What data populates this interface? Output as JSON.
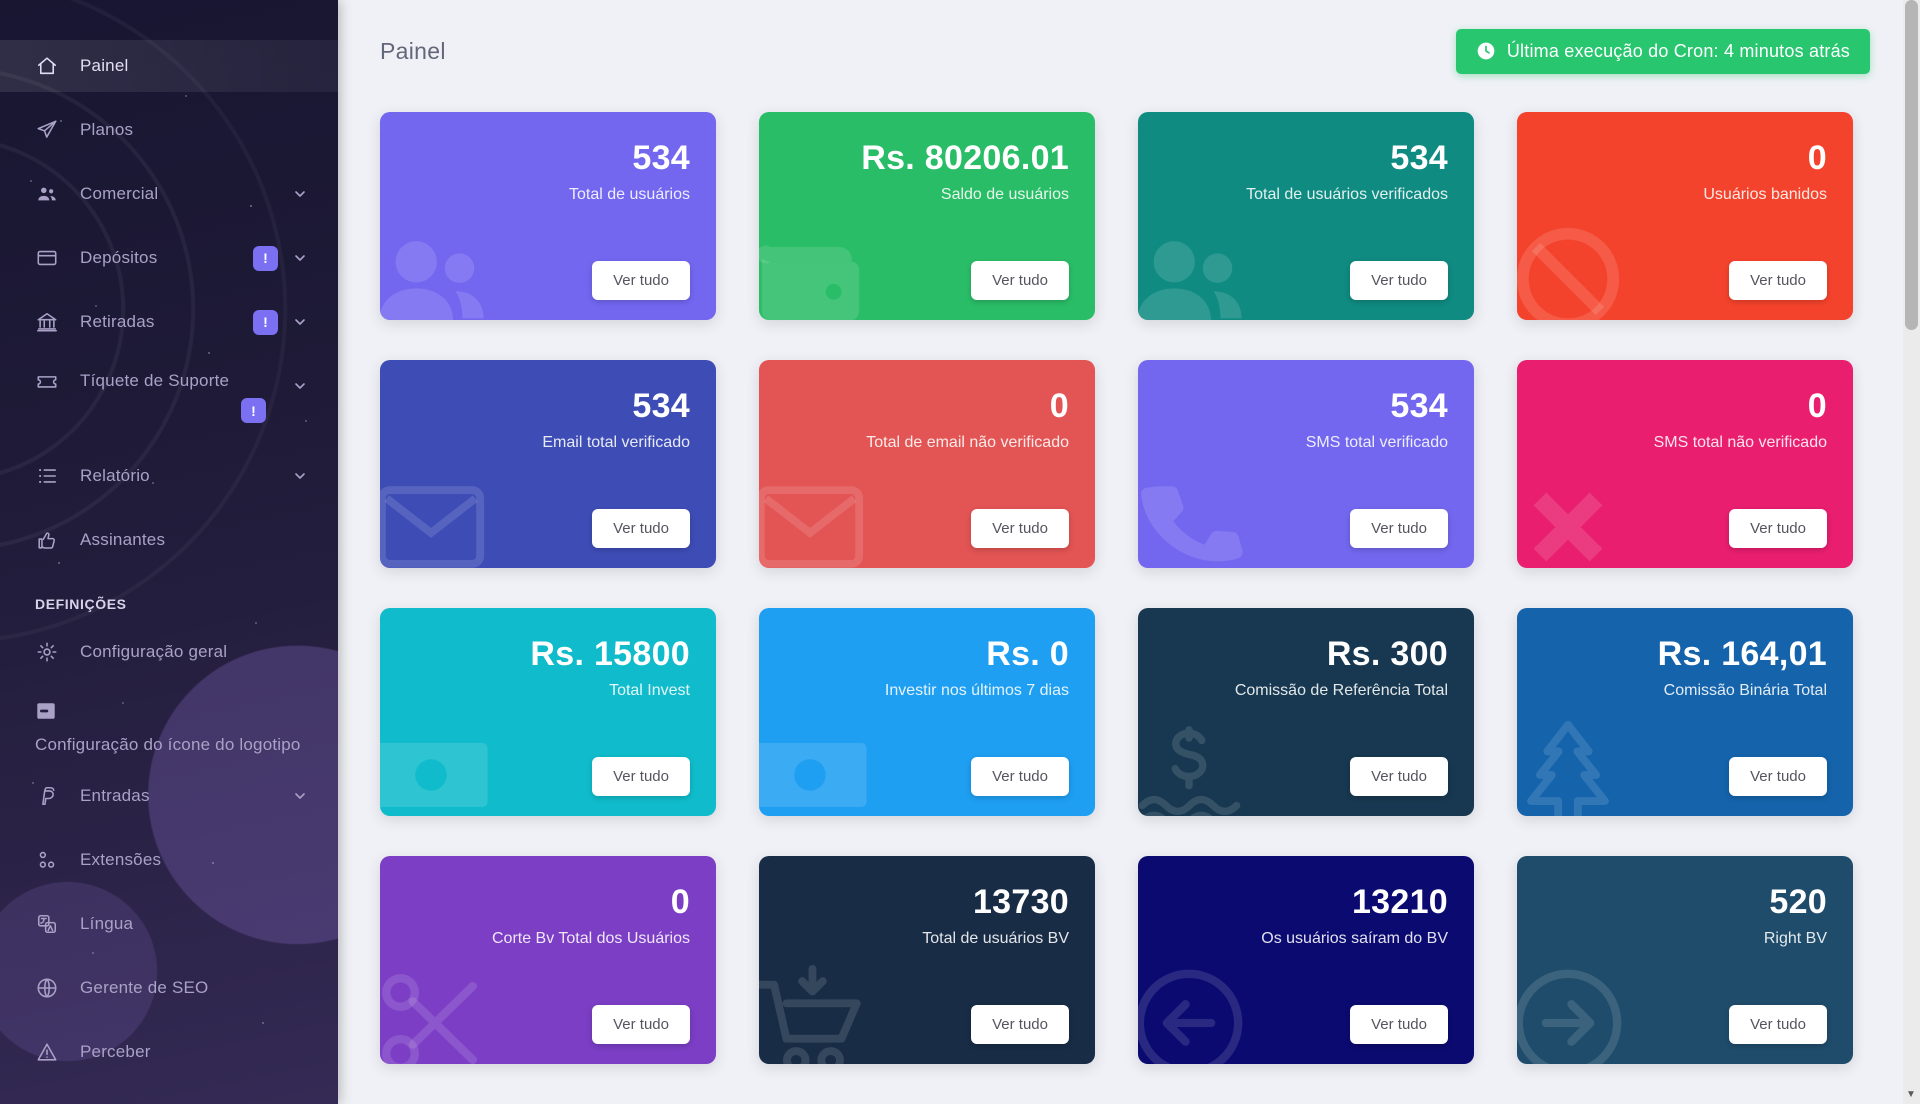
{
  "sidebar": {
    "section_header": "DEFINIÇÕES",
    "chevron_icon": "chevron-down",
    "items": [
      {
        "label": "Painel",
        "icon": "home",
        "active": true
      },
      {
        "label": "Planos",
        "icon": "paper-plane"
      },
      {
        "label": "Comercial",
        "icon": "users"
      },
      {
        "label": "Depósitos",
        "icon": "credit-card",
        "badge": "!"
      },
      {
        "label": "Retiradas",
        "icon": "bank",
        "badge": "!"
      },
      {
        "label": "Tíquete de Suporte",
        "icon": "ticket",
        "badge": "!"
      },
      {
        "label": "Relatório",
        "icon": "list"
      },
      {
        "label": "Assinantes",
        "icon": "thumbs-up"
      },
      {
        "label": "Configuração geral",
        "icon": "gear"
      },
      {
        "label": "Configuração do ícone do logotipo",
        "icon": "image"
      },
      {
        "label": "Entradas",
        "icon": "paypal"
      },
      {
        "label": "Extensões",
        "icon": "extensions"
      },
      {
        "label": "Língua",
        "icon": "language"
      },
      {
        "label": "Gerente de SEO",
        "icon": "globe"
      },
      {
        "label": "Perceber",
        "icon": "warning"
      }
    ]
  },
  "header": {
    "title": "Painel",
    "cron_badge": {
      "text": "Última execução do Cron: 4 minutos atrás",
      "icon": "clock",
      "color": "#28c76f"
    }
  },
  "ui": {
    "view_all_label": "Ver tudo",
    "scroll_arrow": "▼"
  },
  "cards": [
    {
      "value": "534",
      "label": "Total de usuários",
      "color": "#7367f0",
      "icon": "users-group"
    },
    {
      "value": "Rs. 80206.01",
      "label": "Saldo de usuários",
      "color": "#2abd67",
      "icon": "wallet"
    },
    {
      "value": "534",
      "label": "Total de usuários verificados",
      "color": "#0f8b81",
      "icon": "users-group"
    },
    {
      "value": "0",
      "label": "Usuários banidos",
      "color": "#f4432c",
      "icon": "ban"
    },
    {
      "value": "534",
      "label": "Email total verificado",
      "color": "#3e4db6",
      "icon": "envelope"
    },
    {
      "value": "0",
      "label": "Total de email não verificado",
      "color": "#e35454",
      "icon": "envelope"
    },
    {
      "value": "534",
      "label": "SMS total verificado",
      "color": "#7367ef",
      "icon": "phone"
    },
    {
      "value": "0",
      "label": "SMS total não verificado",
      "color": "#e91e6f",
      "icon": "x-mark"
    },
    {
      "value": "Rs. 15800",
      "label": "Total Invest",
      "color": "#10bccb",
      "icon": "banknote"
    },
    {
      "value": "Rs. 0",
      "label": "Investir nos últimos 7 dias",
      "color": "#1e9ff2",
      "icon": "banknote"
    },
    {
      "value": "Rs. 300",
      "label": "Comissão de Referência Total",
      "color": "#173850",
      "icon": "hand-dollar"
    },
    {
      "value": "Rs. 164,01",
      "label": "Comissão Binária Total",
      "color": "#1463ab",
      "icon": "tree"
    },
    {
      "value": "0",
      "label": "Corte Bv Total dos Usuários",
      "color": "#7b3ec5",
      "icon": "scissors"
    },
    {
      "value": "13730",
      "label": "Total de usuários BV",
      "color": "#182c46",
      "icon": "cart-down"
    },
    {
      "value": "13210",
      "label": "Os usuários saíram do BV",
      "color": "#0b0a70",
      "icon": "arrow-circle-left"
    },
    {
      "value": "520",
      "label": "Right BV",
      "color": "#1f4c6b",
      "icon": "arrow-circle-right"
    }
  ]
}
